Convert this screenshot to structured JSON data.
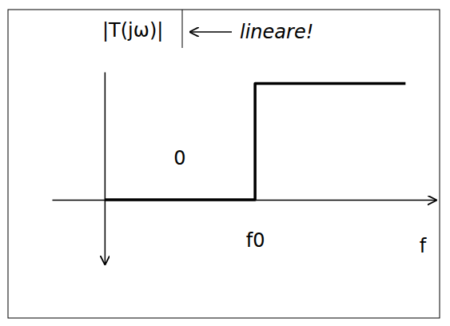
{
  "chart_data": {
    "type": "line",
    "title": "|T(jω)|",
    "x_label": "f",
    "annotations": [
      {
        "text": "lineare!"
      },
      {
        "text": "0",
        "x": 0.5,
        "y": 0.3
      }
    ],
    "x": [
      0,
      1,
      1,
      2
    ],
    "values": [
      0,
      0,
      1,
      1
    ],
    "color": "#000000",
    "xlim": [
      -0.35,
      2.2
    ],
    "ylim": [
      -0.55,
      1.1
    ],
    "xticks": [
      {
        "value": 1,
        "label": "f0"
      }
    ],
    "yticks": [],
    "tick_labels": "x",
    "grid": false
  }
}
